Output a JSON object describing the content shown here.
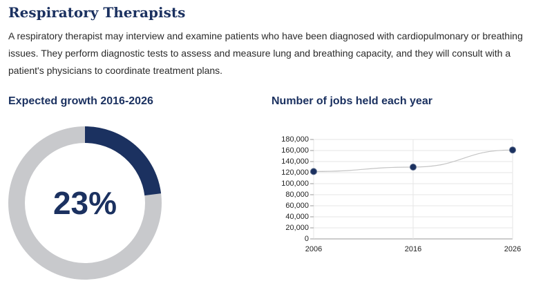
{
  "page": {
    "title": "Respiratory Therapists",
    "description": "A respiratory therapist may interview and examine patients who have been diagnosed with cardiopulmonary or breathing issues. They perform diagnostic tests to assess and measure lung and breathing capacity, and they will consult with a patient's physicians to coordinate treatment plans.",
    "growth_heading": "Expected growth 2016-2026",
    "jobs_heading": "Number of jobs held each year"
  },
  "colors": {
    "accent": "#1b3160",
    "ring": "#c8c9cc",
    "grid": "#e6e6e6",
    "line": "#c4c4c4"
  },
  "chart_data": [
    {
      "type": "pie",
      "title": "Expected growth 2016-2026",
      "values": [
        23,
        77
      ],
      "label": "23%"
    },
    {
      "type": "line",
      "title": "Number of jobs held each year",
      "x": [
        "2006",
        "2016",
        "2026"
      ],
      "series": [
        {
          "values": [
            122000,
            130000,
            161000
          ]
        }
      ],
      "ylim": [
        0,
        180000
      ],
      "yticks": [
        "0",
        "20,000",
        "40,000",
        "60,000",
        "80,000",
        "100,000",
        "120,000",
        "140,000",
        "160,000",
        "180,000"
      ],
      "grid": true
    }
  ]
}
